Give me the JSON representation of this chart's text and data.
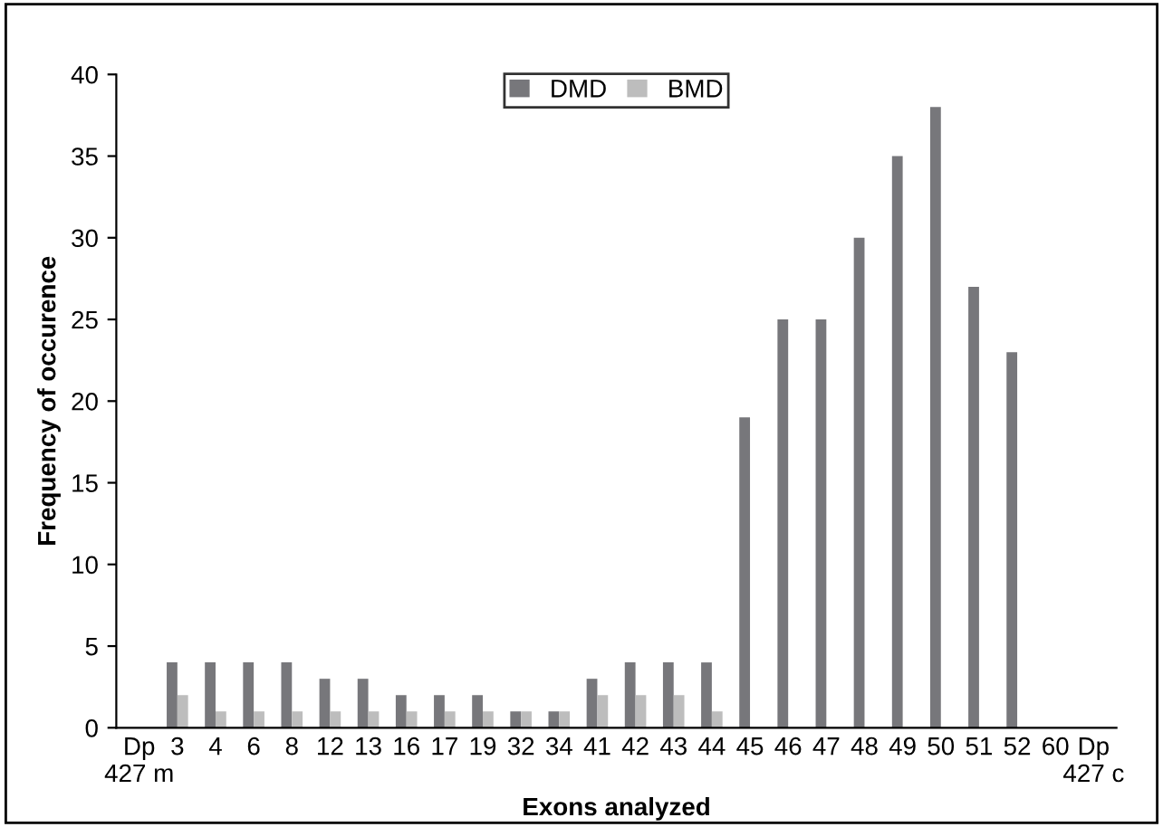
{
  "chart_data": {
    "type": "bar",
    "xlabel": "Exons analyzed",
    "ylabel": "Frequency of occurence",
    "categories": [
      "Dp\n427 m",
      "3",
      "4",
      "6",
      "8",
      "12",
      "13",
      "16",
      "17",
      "19",
      "32",
      "34",
      "41",
      "42",
      "43",
      "44",
      "45",
      "46",
      "47",
      "48",
      "49",
      "50",
      "51",
      "52",
      "60",
      "Dp\n427 c"
    ],
    "series": [
      {
        "name": "DMD",
        "color": "#77777b",
        "values": [
          0,
          4,
          4,
          4,
          4,
          3,
          3,
          2,
          2,
          2,
          1,
          1,
          3,
          4,
          4,
          4,
          19,
          25,
          25,
          30,
          35,
          38,
          27,
          23,
          0,
          0
        ]
      },
      {
        "name": "BMD",
        "color": "#bdbdbd",
        "values": [
          0,
          2,
          1,
          1,
          1,
          1,
          1,
          1,
          1,
          1,
          1,
          1,
          2,
          2,
          2,
          1,
          0,
          0,
          0,
          0,
          0,
          0,
          0,
          0,
          0,
          0
        ]
      }
    ],
    "ylim": [
      0,
      40
    ],
    "yticks": [
      0,
      5,
      10,
      15,
      20,
      25,
      30,
      35,
      40
    ],
    "grid": false,
    "legend": "top"
  }
}
